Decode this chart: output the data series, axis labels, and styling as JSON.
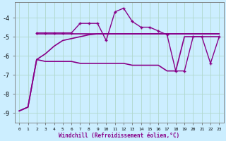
{
  "xlabel": "Windchill (Refroidissement éolien,°C)",
  "background_color": "#cceeff",
  "grid_color": "#aaddcc",
  "line_color": "#880088",
  "xlim": [
    -0.5,
    23.5
  ],
  "ylim": [
    -9.5,
    -3.2
  ],
  "yticks": [
    -9,
    -8,
    -7,
    -6,
    -5,
    -4
  ],
  "xticks": [
    0,
    1,
    2,
    3,
    4,
    5,
    6,
    7,
    8,
    9,
    10,
    11,
    12,
    13,
    14,
    15,
    16,
    17,
    18,
    19,
    20,
    21,
    22,
    23
  ],
  "series": [
    {
      "x": [
        2,
        3,
        4,
        5,
        6,
        7,
        8,
        9,
        10,
        11,
        12,
        13,
        14,
        15,
        16,
        17,
        18,
        19,
        20,
        21,
        22,
        23
      ],
      "y": [
        -4.8,
        -4.8,
        -4.8,
        -4.8,
        -4.8,
        -4.3,
        -4.3,
        -4.3,
        -5.2,
        -3.7,
        -3.5,
        -4.2,
        -4.5,
        -4.5,
        -4.7,
        -4.9,
        -6.8,
        -6.8,
        -5.0,
        -5.0,
        -6.4,
        -5.0
      ],
      "marker": "+",
      "linestyle": "-",
      "linewidth": 1.0
    },
    {
      "x": [
        2,
        3,
        4,
        5,
        6,
        7,
        8,
        9,
        10,
        11,
        12,
        13,
        14,
        15,
        16,
        17,
        18,
        19,
        20,
        21,
        22,
        23
      ],
      "y": [
        -4.85,
        -4.85,
        -4.85,
        -4.85,
        -4.85,
        -4.85,
        -4.85,
        -4.85,
        -4.85,
        -4.85,
        -4.85,
        -4.85,
        -4.85,
        -4.85,
        -4.85,
        -4.85,
        -4.85,
        -4.85,
        -4.85,
        -4.85,
        -4.85,
        -4.85
      ],
      "marker": null,
      "linestyle": "-",
      "linewidth": 1.2
    },
    {
      "x": [
        0,
        1,
        2,
        3,
        4,
        5,
        6,
        7,
        8,
        9,
        10,
        11,
        12,
        13,
        14,
        15,
        16,
        17,
        18,
        19,
        20,
        21,
        22,
        23
      ],
      "y": [
        -8.9,
        -8.7,
        -6.2,
        -5.9,
        -5.5,
        -5.2,
        -5.1,
        -5.0,
        -4.9,
        -4.85,
        -4.85,
        -4.85,
        -4.85,
        -4.85,
        -4.85,
        -4.85,
        -4.85,
        -4.85,
        -4.85,
        -4.85,
        -4.85,
        -4.85,
        -4.85,
        -4.85
      ],
      "marker": null,
      "linestyle": "-",
      "linewidth": 1.2
    },
    {
      "x": [
        0,
        1,
        2,
        3,
        4,
        5,
        6,
        7,
        8,
        9,
        10,
        11,
        12,
        13,
        14,
        15,
        16,
        17,
        18,
        19,
        20,
        21,
        22,
        23
      ],
      "y": [
        -8.9,
        -8.7,
        -6.2,
        -6.3,
        -6.3,
        -6.3,
        -6.3,
        -6.4,
        -6.4,
        -6.4,
        -6.4,
        -6.4,
        -6.4,
        -6.5,
        -6.5,
        -6.5,
        -6.5,
        -6.8,
        -6.8,
        -5.0,
        -5.0,
        -5.0,
        -5.0,
        -5.0
      ],
      "marker": null,
      "linestyle": "-",
      "linewidth": 1.2
    }
  ]
}
